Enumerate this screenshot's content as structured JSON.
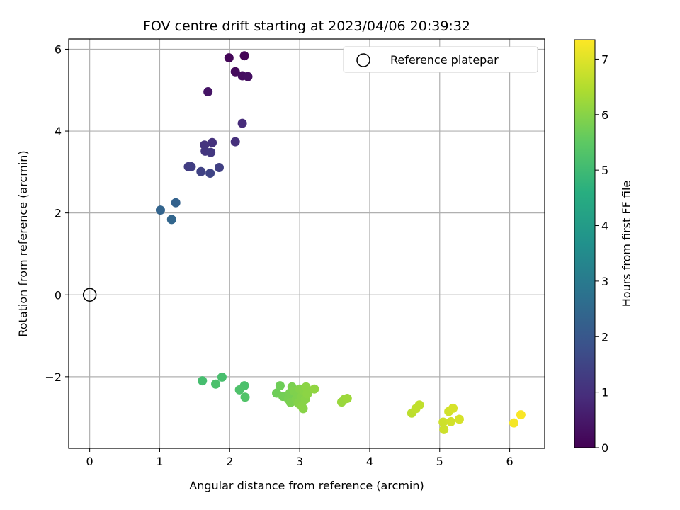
{
  "chart_data": {
    "type": "scatter",
    "title": "FOV centre drift starting at 2023/04/06 20:39:32",
    "xlabel": "Angular distance from reference (arcmin)",
    "ylabel": "Rotation from reference (arcmin)",
    "xlim": [
      -0.3,
      6.5
    ],
    "ylim": [
      -3.75,
      6.25
    ],
    "xticks": [
      0,
      1,
      2,
      3,
      4,
      5,
      6
    ],
    "yticks": [
      -2,
      0,
      2,
      4,
      6
    ],
    "ytick_labels": [
      "−2",
      "0",
      "2",
      "4",
      "6"
    ],
    "grid": true,
    "legend": {
      "position": "top-right",
      "entries": [
        {
          "label": "Reference platepar",
          "marker": "open-circle"
        }
      ]
    },
    "reference_point": {
      "x": 0,
      "y": 0
    },
    "colorbar": {
      "label": "Hours from first FF file",
      "colormap": "viridis",
      "range": [
        0,
        7.35
      ],
      "ticks": [
        0,
        1,
        2,
        3,
        4,
        5,
        6,
        7
      ]
    },
    "points": [
      {
        "x": 2.21,
        "y": 5.84,
        "c": 0.05
      },
      {
        "x": 1.99,
        "y": 5.79,
        "c": 0.1
      },
      {
        "x": 2.08,
        "y": 5.45,
        "c": 0.2
      },
      {
        "x": 2.18,
        "y": 5.35,
        "c": 0.25
      },
      {
        "x": 2.26,
        "y": 5.33,
        "c": 0.3
      },
      {
        "x": 1.69,
        "y": 4.96,
        "c": 0.4
      },
      {
        "x": 2.18,
        "y": 4.19,
        "c": 0.9
      },
      {
        "x": 2.08,
        "y": 3.74,
        "c": 1.0
      },
      {
        "x": 1.75,
        "y": 3.72,
        "c": 1.05
      },
      {
        "x": 1.64,
        "y": 3.66,
        "c": 1.1
      },
      {
        "x": 1.65,
        "y": 3.51,
        "c": 1.15
      },
      {
        "x": 1.73,
        "y": 3.48,
        "c": 1.2
      },
      {
        "x": 1.41,
        "y": 3.13,
        "c": 1.3
      },
      {
        "x": 1.45,
        "y": 3.13,
        "c": 1.35
      },
      {
        "x": 1.85,
        "y": 3.11,
        "c": 1.4
      },
      {
        "x": 1.59,
        "y": 3.01,
        "c": 1.45
      },
      {
        "x": 1.72,
        "y": 2.97,
        "c": 1.5
      },
      {
        "x": 1.23,
        "y": 2.25,
        "c": 2.3
      },
      {
        "x": 1.01,
        "y": 2.07,
        "c": 2.35
      },
      {
        "x": 1.17,
        "y": 1.84,
        "c": 2.4
      },
      {
        "x": 1.61,
        "y": -2.1,
        "c": 5.1
      },
      {
        "x": 1.89,
        "y": -2.01,
        "c": 5.15
      },
      {
        "x": 1.8,
        "y": -2.18,
        "c": 5.2
      },
      {
        "x": 2.21,
        "y": -2.22,
        "c": 5.2
      },
      {
        "x": 2.14,
        "y": -2.32,
        "c": 5.25
      },
      {
        "x": 2.22,
        "y": -2.5,
        "c": 5.3
      },
      {
        "x": 2.72,
        "y": -2.22,
        "c": 5.7
      },
      {
        "x": 2.67,
        "y": -2.4,
        "c": 5.7
      },
      {
        "x": 2.76,
        "y": -2.48,
        "c": 5.75
      },
      {
        "x": 2.84,
        "y": -2.55,
        "c": 5.8
      },
      {
        "x": 2.86,
        "y": -2.4,
        "c": 5.8
      },
      {
        "x": 2.89,
        "y": -2.25,
        "c": 5.85
      },
      {
        "x": 2.87,
        "y": -2.63,
        "c": 5.85
      },
      {
        "x": 2.92,
        "y": -2.35,
        "c": 5.9
      },
      {
        "x": 2.95,
        "y": -2.55,
        "c": 5.9
      },
      {
        "x": 2.97,
        "y": -2.45,
        "c": 5.9
      },
      {
        "x": 2.98,
        "y": -2.65,
        "c": 5.95
      },
      {
        "x": 3.0,
        "y": -2.3,
        "c": 5.95
      },
      {
        "x": 3.02,
        "y": -2.5,
        "c": 5.95
      },
      {
        "x": 3.03,
        "y": -2.72,
        "c": 6.0
      },
      {
        "x": 3.05,
        "y": -2.78,
        "c": 6.0
      },
      {
        "x": 3.06,
        "y": -2.35,
        "c": 6.0
      },
      {
        "x": 3.08,
        "y": -2.55,
        "c": 6.0
      },
      {
        "x": 3.09,
        "y": -2.25,
        "c": 6.05
      },
      {
        "x": 3.11,
        "y": -2.42,
        "c": 6.05
      },
      {
        "x": 3.21,
        "y": -2.3,
        "c": 6.1
      },
      {
        "x": 3.6,
        "y": -2.62,
        "c": 6.2
      },
      {
        "x": 3.64,
        "y": -2.55,
        "c": 6.2
      },
      {
        "x": 3.68,
        "y": -2.53,
        "c": 6.25
      },
      {
        "x": 4.6,
        "y": -2.89,
        "c": 6.6
      },
      {
        "x": 4.66,
        "y": -2.78,
        "c": 6.65
      },
      {
        "x": 4.71,
        "y": -2.69,
        "c": 6.65
      },
      {
        "x": 5.05,
        "y": -3.11,
        "c": 6.8
      },
      {
        "x": 5.06,
        "y": -3.29,
        "c": 6.8
      },
      {
        "x": 5.13,
        "y": -2.85,
        "c": 6.85
      },
      {
        "x": 5.16,
        "y": -3.1,
        "c": 6.85
      },
      {
        "x": 5.19,
        "y": -2.77,
        "c": 6.9
      },
      {
        "x": 5.28,
        "y": -3.04,
        "c": 6.9
      },
      {
        "x": 6.06,
        "y": -3.13,
        "c": 7.25
      },
      {
        "x": 6.16,
        "y": -2.93,
        "c": 7.3
      }
    ]
  }
}
